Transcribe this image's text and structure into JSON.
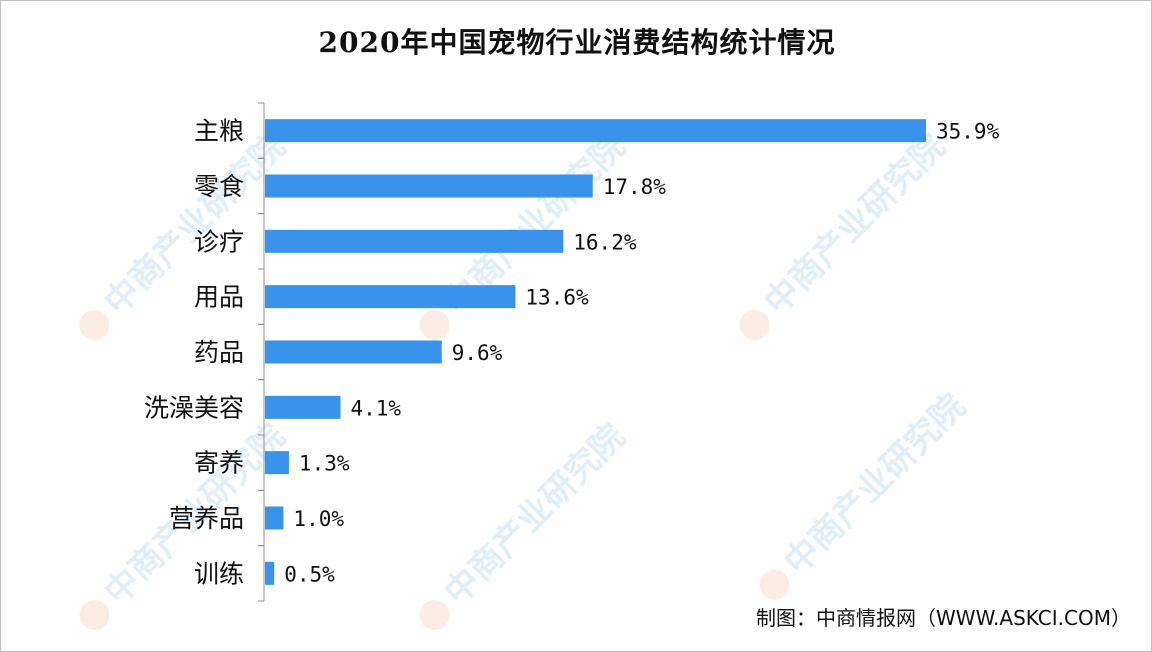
{
  "chart_data": {
    "type": "bar",
    "orientation": "horizontal",
    "title": "2020年中国宠物行业消费结构统计情况",
    "categories": [
      "主粮",
      "零食",
      "诊疗",
      "用品",
      "药品",
      "洗澡美容",
      "寄养",
      "营养品",
      "训练"
    ],
    "values": [
      35.9,
      17.8,
      16.2,
      13.6,
      9.6,
      4.1,
      1.3,
      1.0,
      0.5
    ],
    "value_labels": [
      "35.9%",
      "17.8%",
      "16.2%",
      "13.6%",
      "9.6%",
      "4.1%",
      "1.3%",
      "1.0%",
      "0.5%"
    ],
    "xlim": [
      0,
      35.9
    ],
    "bar_color": "#3a93ea",
    "grid": false,
    "legend": "none"
  },
  "source": "制图：中商情报网（WWW.ASKCI.COM）",
  "watermark": "中商产业研究院"
}
